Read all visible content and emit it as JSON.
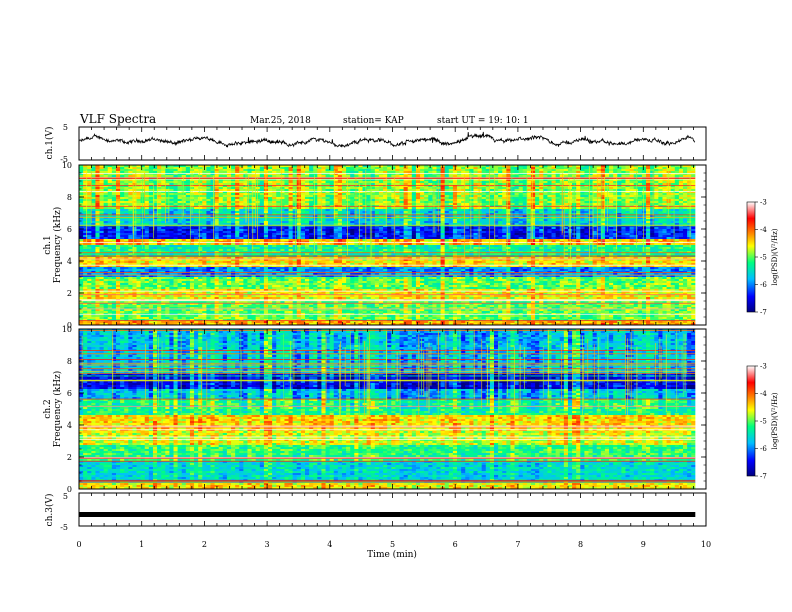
{
  "header": {
    "title": "VLF Spectra",
    "date": "Mar.25, 2018",
    "station": "station= KAP",
    "start": "start  UT =   19: 10: 1"
  },
  "colors": {
    "frame": "#000000",
    "trace": "#000000",
    "colormap": [
      "#000080",
      "#0000ff",
      "#00bfff",
      "#00ff80",
      "#ffff00",
      "#ff8000",
      "#ff0000",
      "#ffffff"
    ]
  },
  "chart_data": [
    {
      "type": "line",
      "name": "ch1-waveform",
      "ylabel": "ch.1(V)",
      "ylim": [
        -5,
        5
      ],
      "yticks": [
        "5",
        "-5"
      ],
      "xlim": [
        0,
        10
      ],
      "x_range_covered": [
        0,
        9.83
      ],
      "trace_level_range": [
        -2,
        2.5
      ]
    },
    {
      "type": "heatmap",
      "name": "ch1-spectrogram",
      "ylabel": "ch.1\nFrequency  (kHz)",
      "ylim": [
        0,
        10
      ],
      "yticks": [
        "0",
        "2",
        "4",
        "6",
        "8",
        "10"
      ],
      "xlim": [
        0,
        10
      ],
      "x_range_covered": [
        0,
        9.83
      ],
      "colorbar": {
        "label": "log(PSD)(V²/Hz)",
        "range": [
          -7,
          -3
        ],
        "ticks": [
          "-3",
          "-4",
          "-5",
          "-6",
          "-7"
        ]
      },
      "bands_kHz": [
        {
          "from": 0.0,
          "to": 0.3,
          "level": -4.3
        },
        {
          "from": 0.3,
          "to": 1.5,
          "level": -5.0
        },
        {
          "from": 1.5,
          "to": 2.2,
          "level": -4.6
        },
        {
          "from": 2.2,
          "to": 3.0,
          "level": -5.0
        },
        {
          "from": 3.0,
          "to": 3.6,
          "level": -6.0
        },
        {
          "from": 3.6,
          "to": 4.2,
          "level": -4.5
        },
        {
          "from": 4.2,
          "to": 5.0,
          "level": -5.3
        },
        {
          "from": 5.0,
          "to": 5.4,
          "level": -4.4
        },
        {
          "from": 5.4,
          "to": 6.3,
          "level": -6.4
        },
        {
          "from": 6.3,
          "to": 7.2,
          "level": -5.6
        },
        {
          "from": 7.2,
          "to": 10.0,
          "level": -4.9
        }
      ]
    },
    {
      "type": "heatmap",
      "name": "ch2-spectrogram",
      "ylabel": "ch.2\nFrequency  (kHz)",
      "ylim": [
        0,
        10
      ],
      "yticks": [
        "0",
        "2",
        "4",
        "6",
        "8",
        "10"
      ],
      "xlim": [
        0,
        10
      ],
      "x_range_covered": [
        0,
        9.83
      ],
      "colorbar": {
        "label": "log(PSD)(V²/Hz)",
        "range": [
          -7,
          -3
        ],
        "ticks": [
          "-3",
          "-4",
          "-5",
          "-6",
          "-7"
        ]
      },
      "bands_kHz": [
        {
          "from": 0.0,
          "to": 0.4,
          "level": -4.6
        },
        {
          "from": 0.4,
          "to": 1.8,
          "level": -5.6
        },
        {
          "from": 1.8,
          "to": 2.8,
          "level": -5.2
        },
        {
          "from": 2.8,
          "to": 3.6,
          "level": -4.7
        },
        {
          "from": 3.6,
          "to": 4.6,
          "level": -4.5
        },
        {
          "from": 4.6,
          "to": 5.6,
          "level": -5.3
        },
        {
          "from": 5.6,
          "to": 6.2,
          "level": -5.8
        },
        {
          "from": 6.2,
          "to": 7.2,
          "level": -6.6
        },
        {
          "from": 7.2,
          "to": 10.0,
          "level": -5.8
        }
      ]
    },
    {
      "type": "line",
      "name": "ch3-waveform",
      "ylabel": "ch.3(V)",
      "ylim": [
        -5,
        5
      ],
      "yticks": [
        "5",
        "0",
        "-5"
      ],
      "xlim": [
        0,
        10
      ],
      "x_range_covered": [
        0,
        9.83
      ],
      "trace_level": -1.5,
      "xlabel": "Time  (min)",
      "xticks": [
        "0",
        "1",
        "2",
        "3",
        "4",
        "5",
        "6",
        "7",
        "8",
        "9",
        "10"
      ]
    }
  ]
}
